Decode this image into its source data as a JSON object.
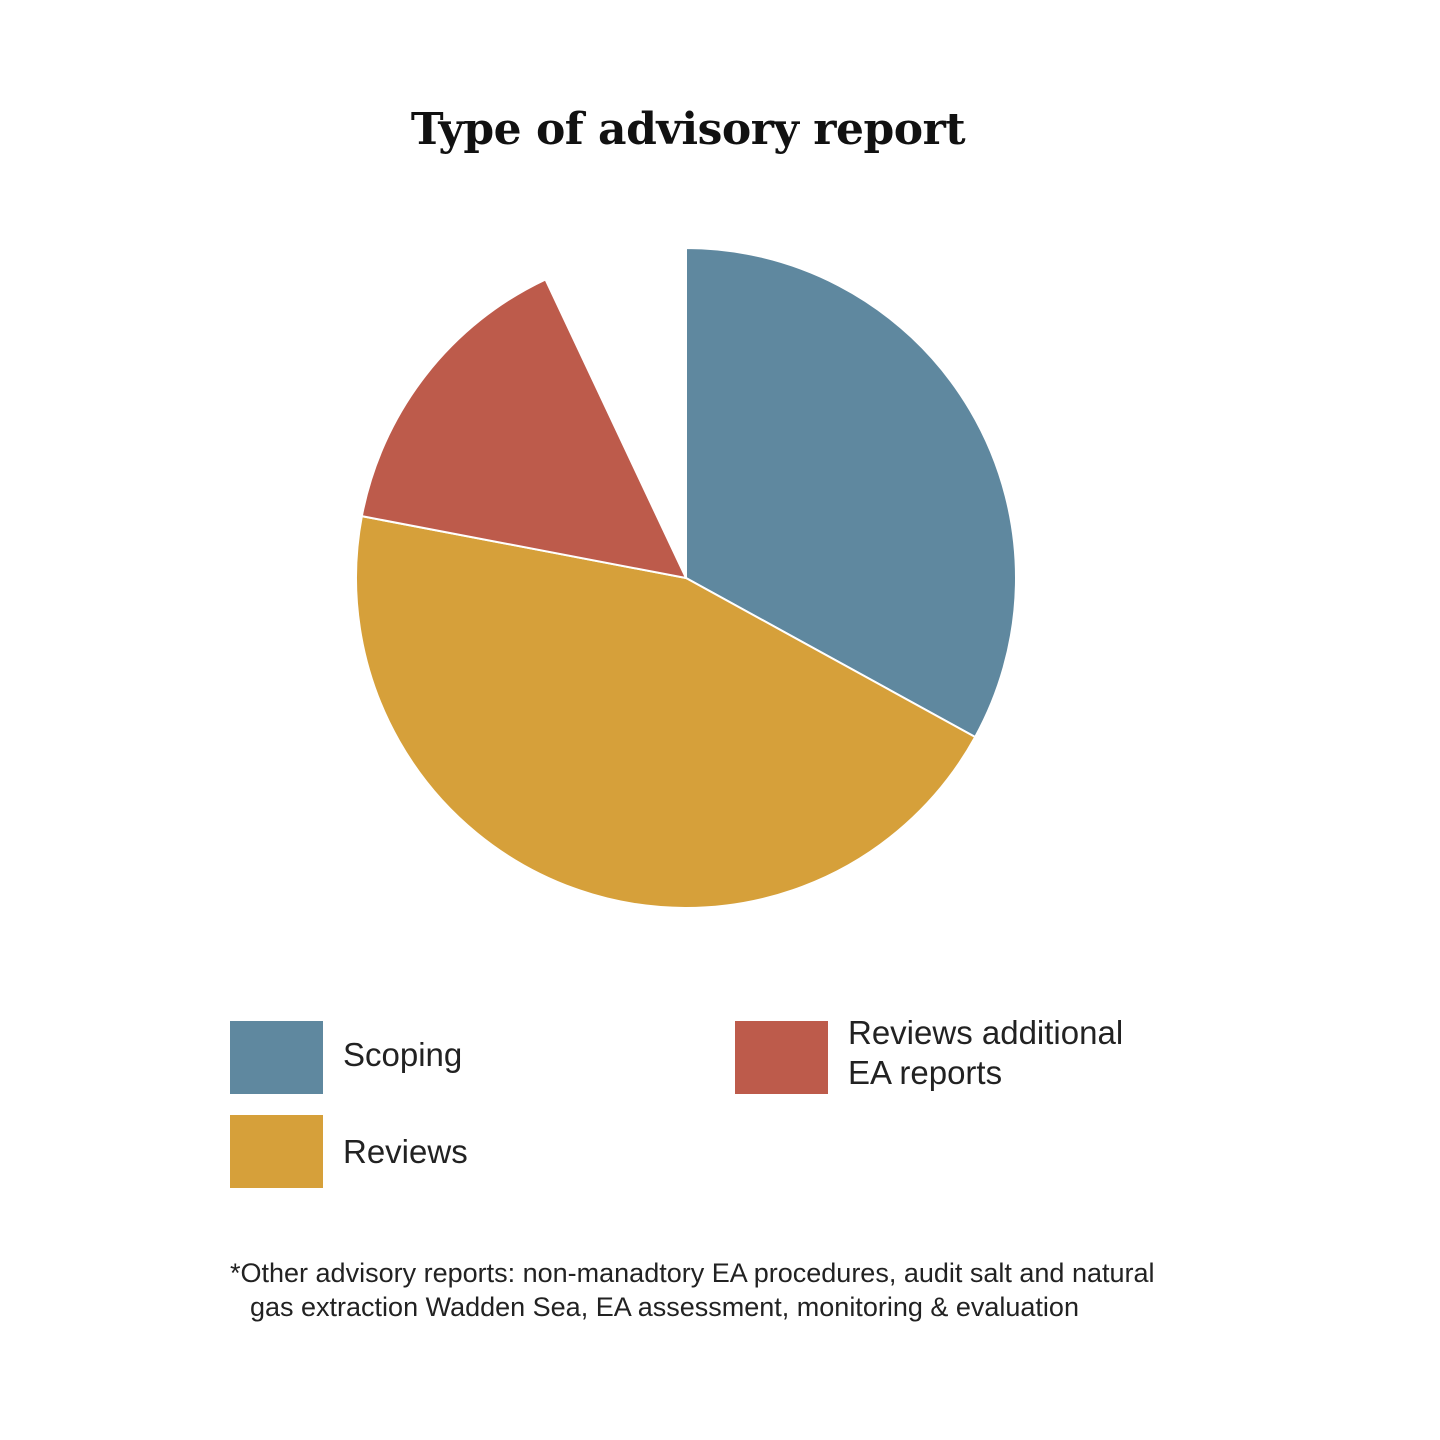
{
  "chart_data": {
    "type": "pie",
    "title": "Type of advisory report",
    "slices": [
      {
        "label": "Scoping",
        "value": 33,
        "color": "#5f889f"
      },
      {
        "label": "Reviews",
        "value": 45,
        "color": "#d6a03a"
      },
      {
        "label": "Reviews additional EA reports",
        "value": 15,
        "color": "#bd5b4b"
      },
      {
        "label": "",
        "value": 7,
        "color": "#ffffff"
      }
    ],
    "start_angle_deg": 0,
    "direction": "clockwise",
    "slice_border_color": "#ffffff"
  },
  "legend": {
    "placement": "bottom",
    "items": [
      {
        "label_line1": "Scoping",
        "label_line2": "",
        "color": "#5f889f"
      },
      {
        "label_line1": "Reviews",
        "label_line2": "",
        "color": "#d6a03a"
      },
      {
        "label_line1": "Reviews additional",
        "label_line2": "EA reports",
        "color": "#bd5b4b"
      }
    ]
  },
  "footnote": {
    "line1": "*Other advisory reports: non-manadtory EA procedures, audit salt and natural",
    "line2": "gas extraction Wadden Sea, EA assessment, monitoring & evaluation"
  }
}
